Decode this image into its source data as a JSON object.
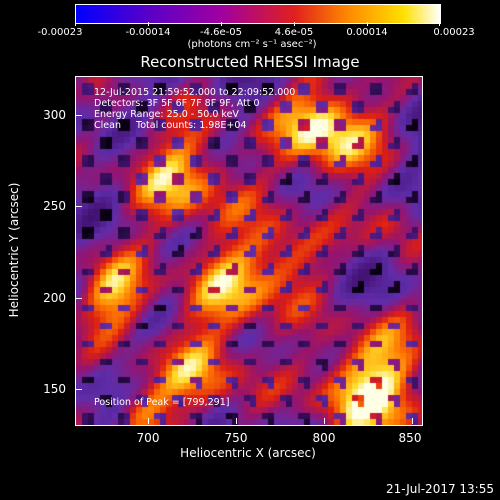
{
  "colorbar": {
    "ticks": [
      "-0.00023",
      "-0.00014",
      "-4.6e-05",
      "4.6e-05",
      "0.00014",
      "0.00023"
    ],
    "unit": "(photons cm⁻² s⁻¹ asec⁻²)"
  },
  "title": "Reconstructed RHESSI Image",
  "info": {
    "line1": "12-Jul-2015 21:59:52.000 to 22:09:52.000",
    "line2": "Detectors: 3F 5F 6F 7F 8F 9F, Att 0",
    "line3": "Energy Range: 25.0 - 50.0 keV",
    "line4": "Clean     Total counts: 1.98E+04",
    "peak": "Position of Peak = [799,291]"
  },
  "axes": {
    "xlabel": "Heliocentric X (arcsec)",
    "ylabel": "Heliocentric Y (arcsec)",
    "xticks": [
      "700",
      "750",
      "800",
      "850"
    ],
    "yticks": [
      "300",
      "250",
      "200",
      "150"
    ]
  },
  "timestamp": "21-Jul-2017 13:55",
  "colors": {
    "background": "#000000",
    "foreground": "#ffffff"
  }
}
